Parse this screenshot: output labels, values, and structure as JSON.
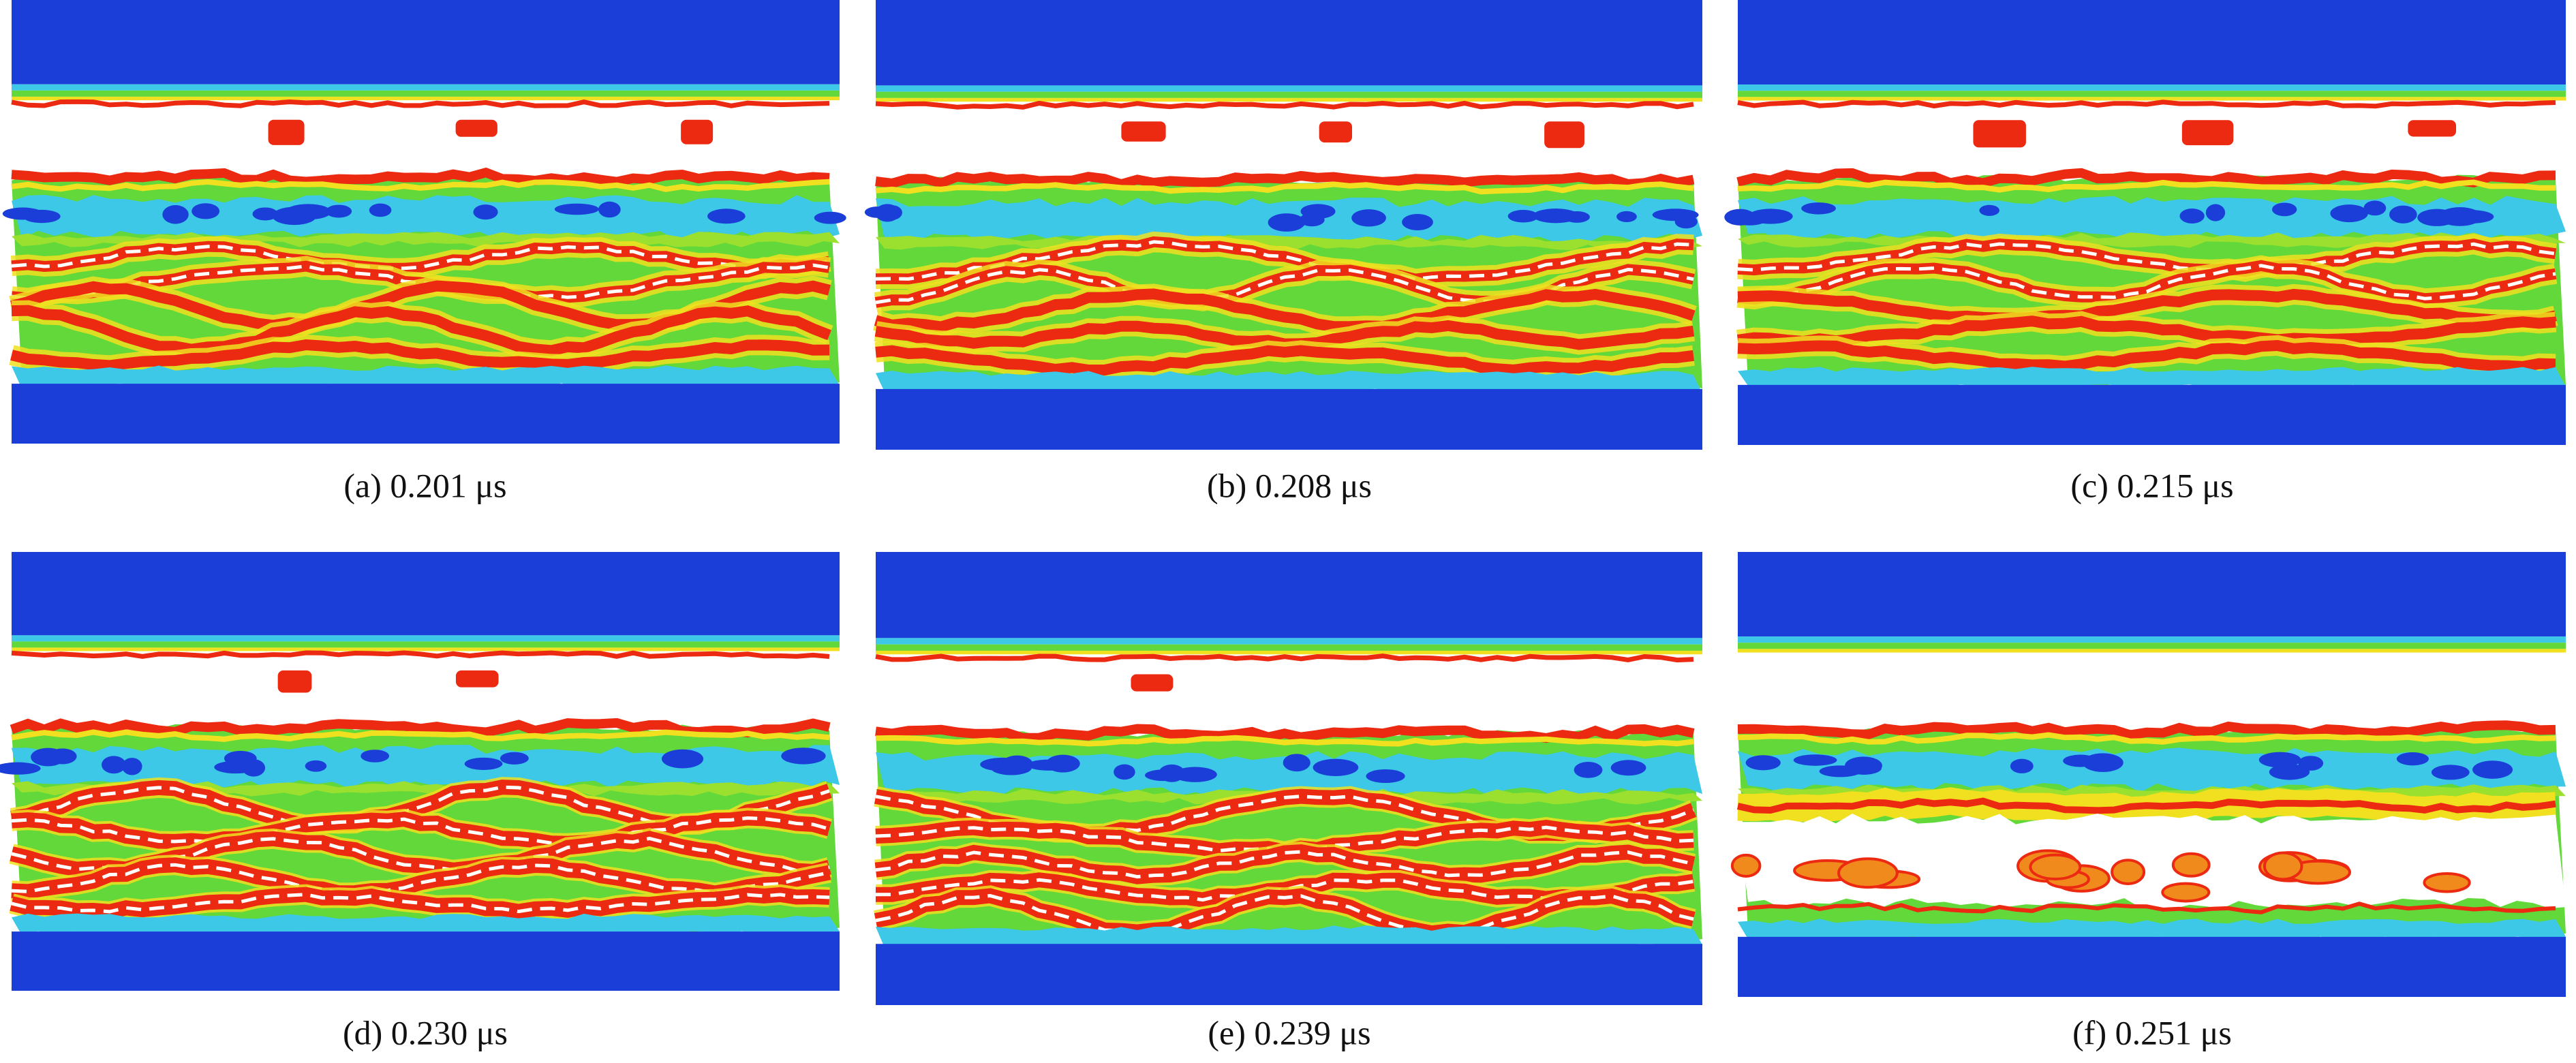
{
  "panels": [
    {
      "caption": "(a) 0.201 μs"
    },
    {
      "caption": "(b) 0.208 μs"
    },
    {
      "caption": "(c) 0.215 μs"
    },
    {
      "caption": "(d) 0.230 μs"
    },
    {
      "caption": "(e) 0.239 μs"
    },
    {
      "caption": "(f) 0.251 μs"
    }
  ]
}
